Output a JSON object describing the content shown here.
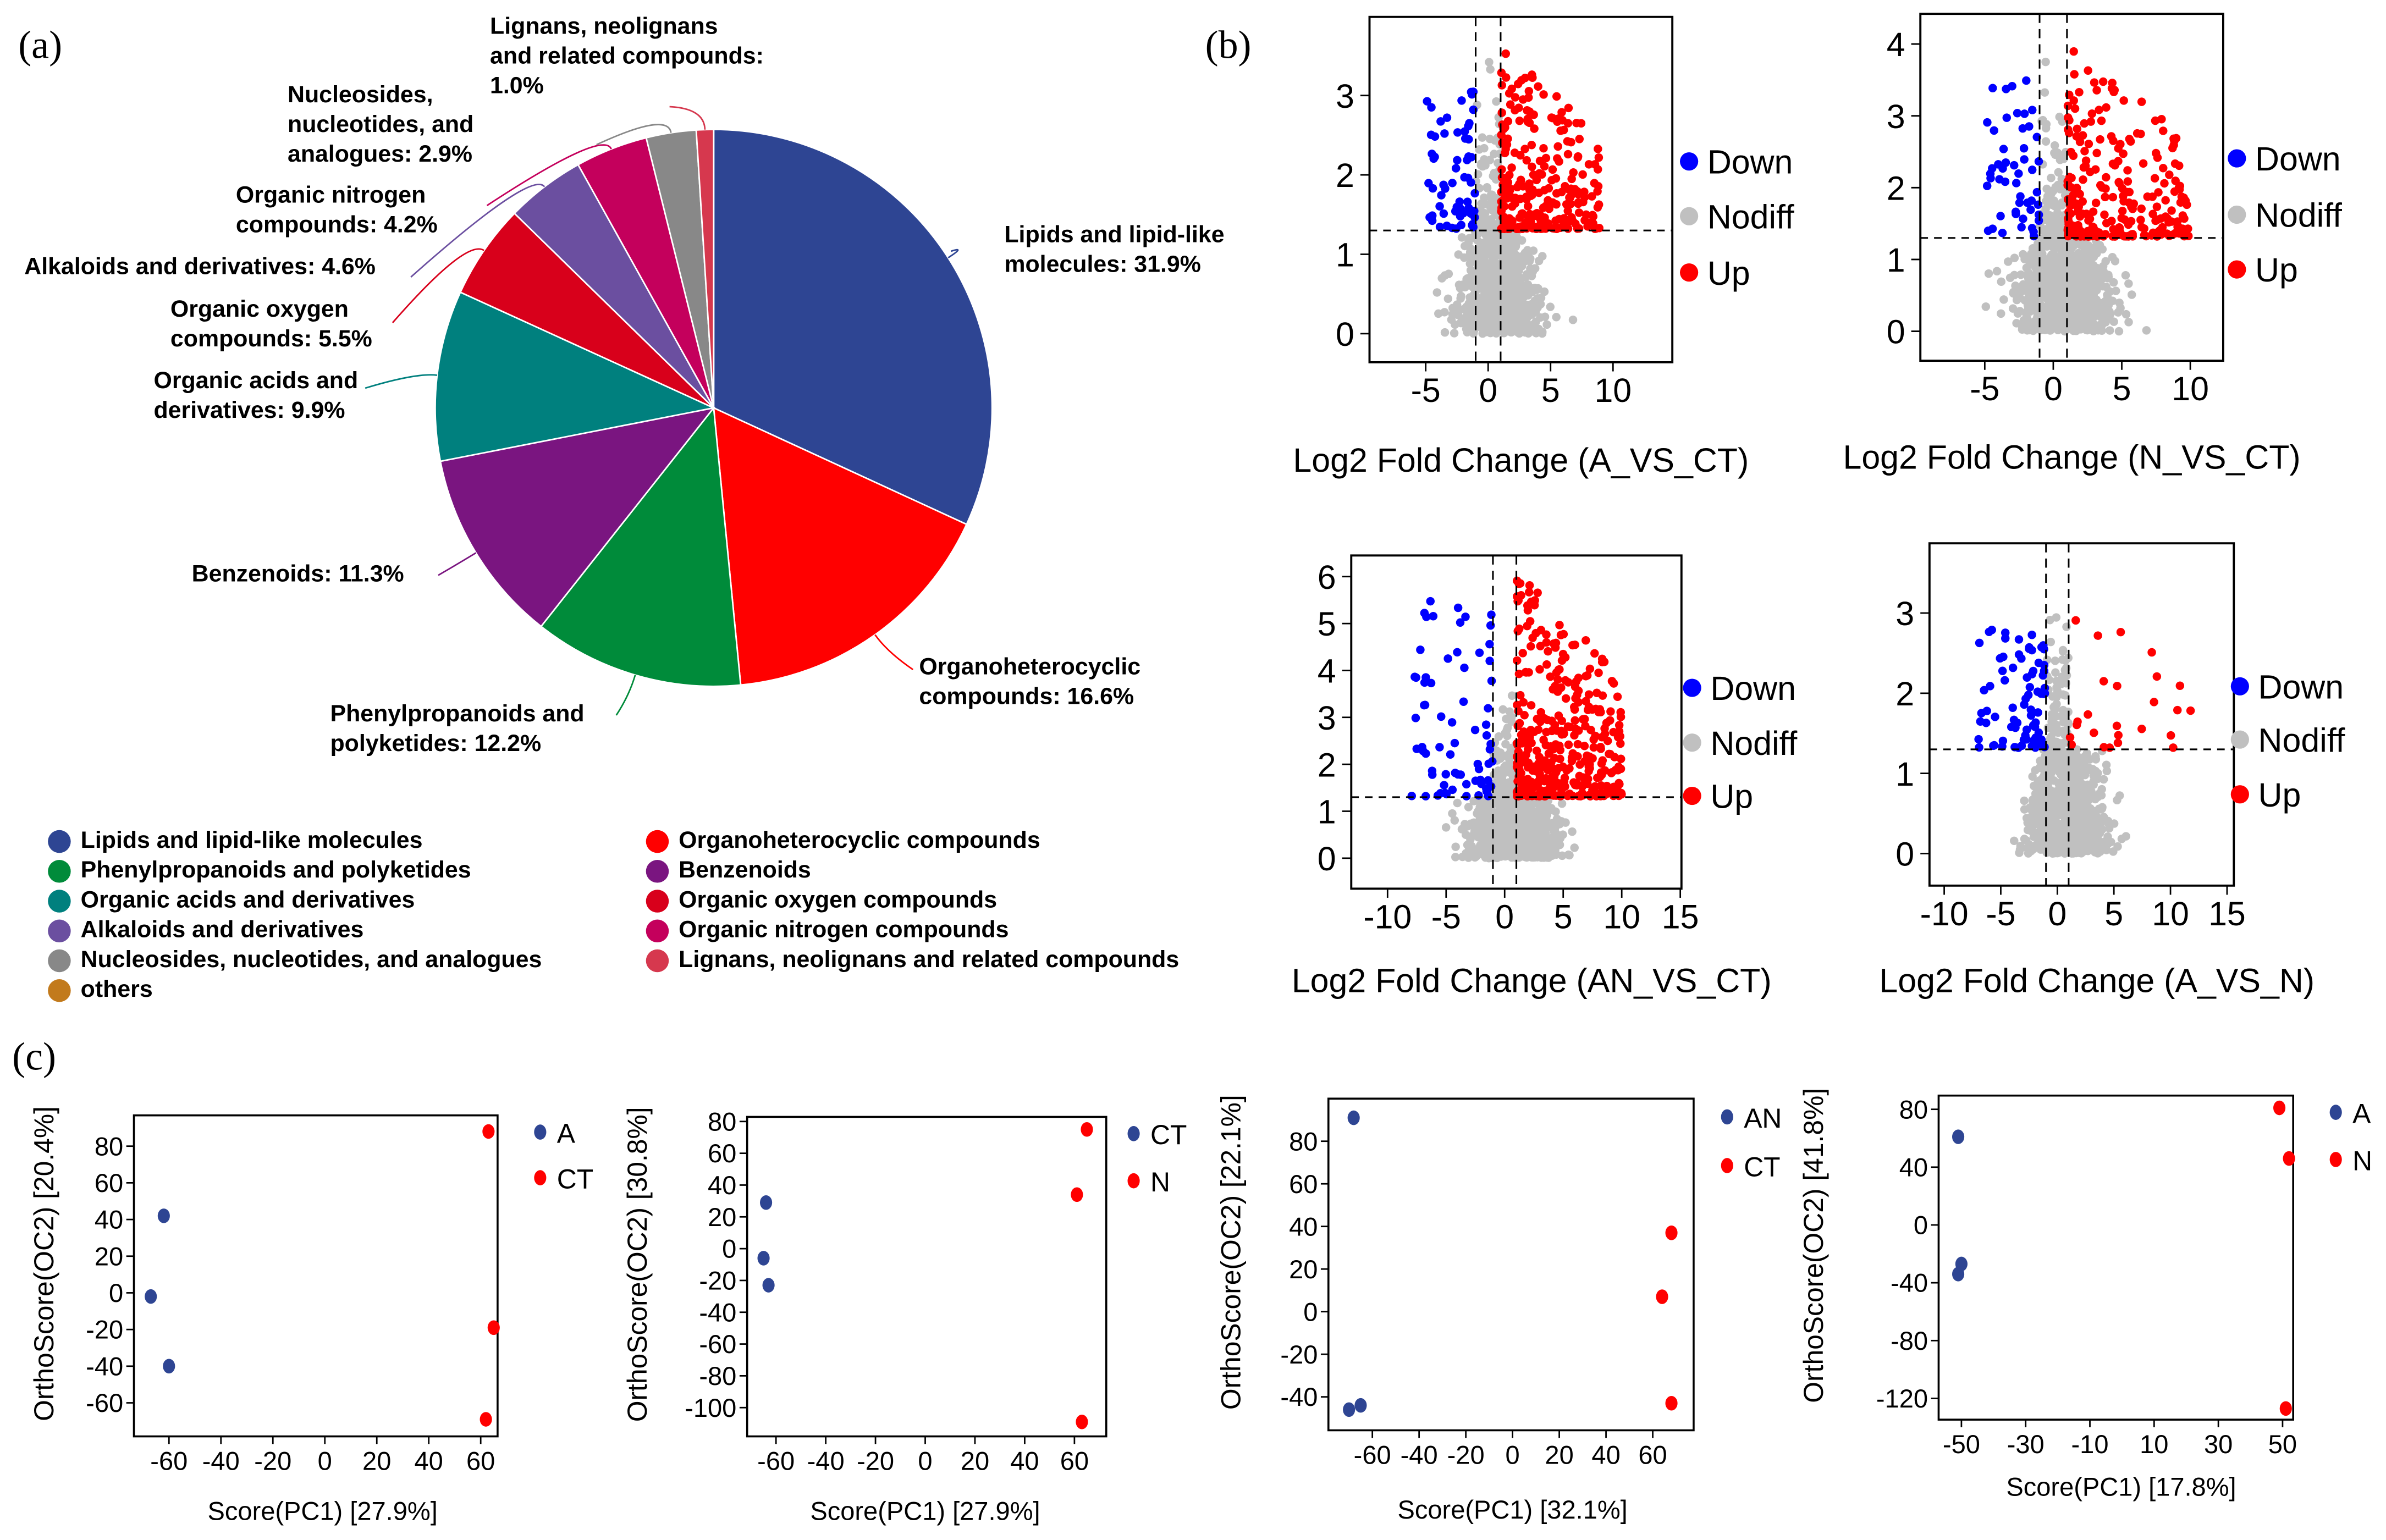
{
  "panel_labels": {
    "a": "(a)",
    "b": "(b)",
    "c": "(c)"
  },
  "chart_data": [
    {
      "type": "pie",
      "id": "a",
      "slices": [
        {
          "name": "Lipids and lipid-like molecules",
          "value": 31.9,
          "color": "#2E4593",
          "label": [
            "Lipids and lipid-like",
            "molecules: 31.9%"
          ]
        },
        {
          "name": "Organoheterocyclic compounds",
          "value": 16.6,
          "color": "#FF0000",
          "label": [
            "Organoheterocyclic",
            "compounds: 16.6%"
          ]
        },
        {
          "name": "Phenylpropanoids and polyketides",
          "value": 12.2,
          "color": "#008B3A",
          "label": [
            "Phenylpropanoids and",
            "polyketides: 12.2%"
          ]
        },
        {
          "name": "Benzenoids",
          "value": 11.3,
          "color": "#7A1580",
          "label": [
            "Benzenoids: 11.3%"
          ]
        },
        {
          "name": "Organic acids and derivatives",
          "value": 9.9,
          "color": "#00807E",
          "label": [
            "Organic acids and",
            "derivatives: 9.9%"
          ]
        },
        {
          "name": "Organic oxygen compounds",
          "value": 5.5,
          "color": "#D8001B",
          "label": [
            "Organic oxygen",
            "compounds: 5.5%"
          ]
        },
        {
          "name": "Alkaloids and derivatives",
          "value": 4.6,
          "color": "#6B4FA0",
          "label": [
            "Alkaloids and derivatives: 4.6%"
          ]
        },
        {
          "name": "Organic nitrogen compounds",
          "value": 4.2,
          "color": "#C4005C",
          "label": [
            "Organic nitrogen",
            "compounds: 4.2%"
          ]
        },
        {
          "name": "Nucleosides, nucleotides, and analogues",
          "value": 2.9,
          "color": "#888888",
          "label": [
            "Nucleosides,",
            "nucleotides, and",
            "analogues: 2.9%"
          ]
        },
        {
          "name": "Lignans, neolignans and related compounds",
          "value": 1.0,
          "color": "#D6384E",
          "label": [
            "Lignans, neolignans",
            "and related compounds:",
            "1.0%"
          ]
        }
      ],
      "legend": [
        {
          "label": "Lipids and lipid-like molecules",
          "color": "#2E4593"
        },
        {
          "label": "Phenylpropanoids and polyketides",
          "color": "#008B3A"
        },
        {
          "label": "Organic acids and derivatives",
          "color": "#00807E"
        },
        {
          "label": "Alkaloids and derivatives",
          "color": "#6B4FA0"
        },
        {
          "label": "Nucleosides, nucleotides, and analogues",
          "color": "#888888"
        },
        {
          "label": "others",
          "color": "#C27A1C"
        },
        {
          "label": "Organoheterocyclic compounds",
          "color": "#FF0000"
        },
        {
          "label": "Benzenoids",
          "color": "#7A1580"
        },
        {
          "label": "Organic oxygen compounds",
          "color": "#D8001B"
        },
        {
          "label": "Organic nitrogen compounds",
          "color": "#C4005C"
        },
        {
          "label": "Lignans, neolignans and related compounds",
          "color": "#D6384E"
        }
      ]
    },
    {
      "type": "scatter",
      "id": "b1",
      "subtype": "volcano",
      "xlabel": "Log2 Fold Change (A_VS_CT)",
      "ylabel": "",
      "xlim": [
        -9.5,
        14.75
      ],
      "ylim": [
        -0.36,
        3.99
      ],
      "xticks": [
        -5,
        0,
        5,
        10
      ],
      "yticks": [
        0,
        1,
        2,
        3
      ],
      "fc_threshold": 1,
      "p_threshold": 1.3,
      "legend": [
        {
          "label": "Down",
          "color": "#0000FF"
        },
        {
          "label": "Nodiff",
          "color": "#C0C0C0"
        },
        {
          "label": "Up",
          "color": "#FF0000"
        }
      ]
    },
    {
      "type": "scatter",
      "id": "b2",
      "subtype": "volcano",
      "xlabel": "Log2 Fold Change (N_VS_CT)",
      "ylabel": "",
      "xlim": [
        -9.7,
        12.4
      ],
      "ylim": [
        -0.41,
        4.42
      ],
      "xticks": [
        -5,
        0,
        5,
        10
      ],
      "yticks": [
        0,
        1,
        2,
        3,
        4
      ],
      "fc_threshold": 1,
      "p_threshold": 1.3,
      "legend": [
        {
          "label": "Down",
          "color": "#0000FF"
        },
        {
          "label": "Nodiff",
          "color": "#C0C0C0"
        },
        {
          "label": "Up",
          "color": "#FF0000"
        }
      ]
    },
    {
      "type": "scatter",
      "id": "b3",
      "subtype": "volcano",
      "xlabel": "Log2 Fold Change (AN_VS_CT)",
      "ylabel": "",
      "xlim": [
        -13.1,
        15.1
      ],
      "ylim": [
        -0.65,
        6.45
      ],
      "xticks": [
        -10,
        -5,
        0,
        5,
        10,
        15
      ],
      "yticks": [
        0,
        1,
        2,
        3,
        4,
        5,
        6
      ],
      "fc_threshold": 1,
      "p_threshold": 1.3,
      "legend": [
        {
          "label": "Down",
          "color": "#0000FF"
        },
        {
          "label": "Nodiff",
          "color": "#C0C0C0"
        },
        {
          "label": "Up",
          "color": "#FF0000"
        }
      ]
    },
    {
      "type": "scatter",
      "id": "b4",
      "subtype": "volcano",
      "xlabel": "Log2 Fold Change (A_VS_N)",
      "ylabel": "",
      "xlim": [
        -11.3,
        15.6
      ],
      "ylim": [
        -0.4,
        3.87
      ],
      "xticks": [
        -10,
        -5,
        0,
        5,
        10,
        15
      ],
      "yticks": [
        0,
        1,
        2,
        3
      ],
      "fc_threshold": 1,
      "p_threshold": 1.3,
      "legend": [
        {
          "label": "Down",
          "color": "#0000FF"
        },
        {
          "label": "Nodiff",
          "color": "#C0C0C0"
        },
        {
          "label": "Up",
          "color": "#FF0000"
        }
      ]
    },
    {
      "type": "scatter",
      "id": "c1",
      "xlabel": "Score(PC1) [27.9%]",
      "ylabel": "OrthoScore(OC2) [20.4%]",
      "xlim": [
        -73.5,
        66.5
      ],
      "ylim": [
        -78.3,
        96.8
      ],
      "xticks": [
        -60,
        -40,
        -20,
        0,
        20,
        40,
        60
      ],
      "yticks": [
        80,
        60,
        40,
        20,
        0,
        -20,
        -40,
        -60
      ],
      "series": [
        {
          "name": "A",
          "color": "#2E4593",
          "points": [
            [
              -62,
              42
            ],
            [
              -67,
              -2
            ],
            [
              -60,
              -40
            ]
          ]
        },
        {
          "name": "CT",
          "color": "#FF0000",
          "points": [
            [
              63,
              88
            ],
            [
              65,
              -19
            ],
            [
              62,
              -69
            ]
          ]
        }
      ]
    },
    {
      "type": "scatter",
      "id": "c2",
      "xlabel": "Score(PC1) [27.9%]",
      "ylabel": "OrthoScore(OC2) [30.8%]",
      "xlim": [
        -71.6,
        72.8
      ],
      "ylim": [
        -118.1,
        82.9
      ],
      "xticks": [
        -60,
        -40,
        -20,
        0,
        20,
        40,
        60
      ],
      "yticks": [
        80,
        60,
        40,
        20,
        0,
        -20,
        -40,
        -60,
        -80,
        -100
      ],
      "series": [
        {
          "name": "CT",
          "color": "#2E4593",
          "points": [
            [
              -64,
              29
            ],
            [
              -65,
              -6
            ],
            [
              -63,
              -23
            ]
          ]
        },
        {
          "name": "N",
          "color": "#FF0000",
          "points": [
            [
              65,
              75
            ],
            [
              61,
              34
            ],
            [
              63,
              -109
            ]
          ]
        }
      ]
    },
    {
      "type": "scatter",
      "id": "c3",
      "xlabel": "Score(PC1) [32.1%]",
      "ylabel": "OrthoScore(OC2) [22.1%]",
      "xlim": [
        -78.8,
        77.5
      ],
      "ylim": [
        -55.7,
        100
      ],
      "xticks": [
        -60,
        -40,
        -20,
        0,
        20,
        40,
        60
      ],
      "yticks": [
        80,
        60,
        40,
        20,
        0,
        -20,
        -40
      ],
      "series": [
        {
          "name": "AN",
          "color": "#2E4593",
          "points": [
            [
              -68,
              91
            ],
            [
              -70,
              -46
            ],
            [
              -65,
              -44
            ]
          ]
        },
        {
          "name": "CT",
          "color": "#FF0000",
          "points": [
            [
              64,
              7
            ],
            [
              68,
              37
            ],
            [
              68,
              -43
            ]
          ]
        }
      ]
    },
    {
      "type": "scatter",
      "id": "c4",
      "xlabel": "Score(PC1) [17.8%]",
      "ylabel": "OrthoScore(OC2) [41.8%]",
      "xlim": [
        -57.1,
        53.3
      ],
      "ylim": [
        -134.7,
        89.5
      ],
      "xticks": [
        -50,
        -30,
        -10,
        10,
        30,
        50
      ],
      "yticks": [
        80,
        40,
        0,
        -40,
        -80,
        -120
      ],
      "series": [
        {
          "name": "A",
          "color": "#2E4593",
          "points": [
            [
              -51,
              61
            ],
            [
              -50,
              -27
            ],
            [
              -51,
              -34
            ]
          ]
        },
        {
          "name": "N",
          "color": "#FF0000",
          "points": [
            [
              49,
              81
            ],
            [
              52,
              46
            ],
            [
              51,
              -127
            ]
          ]
        }
      ]
    }
  ]
}
